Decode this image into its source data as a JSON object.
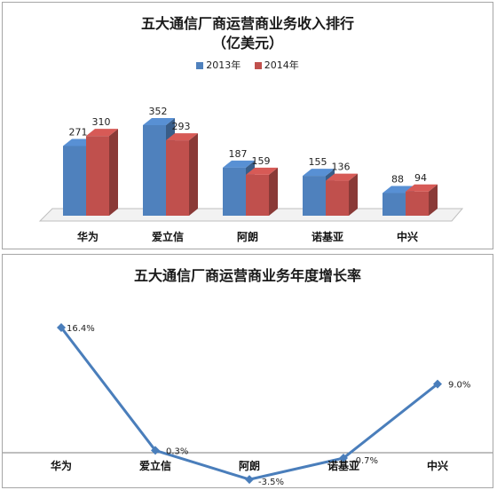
{
  "colors": {
    "s2013": "#4f81bd",
    "s2014": "#c0504d",
    "line": "#4a7ebb"
  },
  "chart_data": [
    {
      "type": "bar",
      "title": "五大通信厂商运营商业务收入排行",
      "subtitle": "（亿美元）",
      "categories": [
        "华为",
        "爱立信",
        "阿朗",
        "诺基亚",
        "中兴"
      ],
      "series": [
        {
          "name": "2013年",
          "values": [
            271,
            352,
            187,
            155,
            88
          ]
        },
        {
          "name": "2014年",
          "values": [
            310,
            293,
            159,
            136,
            94
          ]
        }
      ],
      "ylim": [
        0,
        400
      ],
      "grid": false,
      "legend": "top"
    },
    {
      "type": "line",
      "title": "五大通信厂商运营商业务年度增长率",
      "categories": [
        "华为",
        "爱立信",
        "阿朗",
        "诺基亚",
        "中兴"
      ],
      "values": [
        16.4,
        0.3,
        -3.5,
        -0.7,
        9.0
      ],
      "data_labels": [
        "16.4%",
        "0.3%",
        "-3.5%",
        "-0.7%",
        "9.0%"
      ],
      "ylim": [
        -4,
        18
      ],
      "grid": false
    }
  ]
}
